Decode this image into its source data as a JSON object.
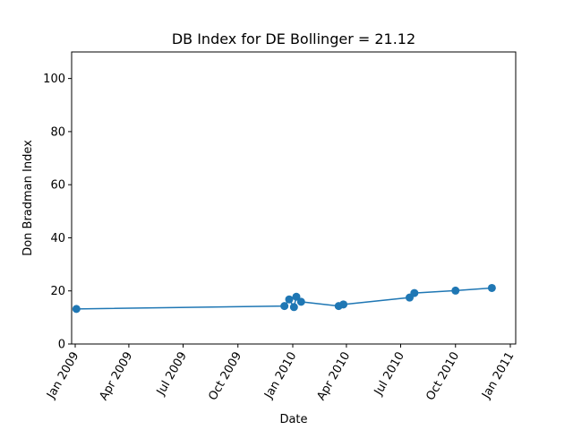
{
  "chart_data": {
    "type": "line",
    "title": "DB Index for DE Bollinger = 21.12",
    "xlabel": "Date",
    "ylabel": "Don Bradman Index",
    "xlim": [
      "2008-12-26",
      "2011-01-10"
    ],
    "ylim": [
      0,
      110
    ],
    "x_ticks": [
      {
        "date": "2009-01-01",
        "label": "Jan 2009"
      },
      {
        "date": "2009-04-01",
        "label": "Apr 2009"
      },
      {
        "date": "2009-07-01",
        "label": "Jul 2009"
      },
      {
        "date": "2009-10-01",
        "label": "Oct 2009"
      },
      {
        "date": "2010-01-01",
        "label": "Jan 2010"
      },
      {
        "date": "2010-04-01",
        "label": "Apr 2010"
      },
      {
        "date": "2010-07-01",
        "label": "Jul 2010"
      },
      {
        "date": "2010-10-01",
        "label": "Oct 2010"
      },
      {
        "date": "2011-01-01",
        "label": "Jan 2011"
      }
    ],
    "y_ticks": [
      0,
      20,
      40,
      60,
      80,
      100
    ],
    "grid": false,
    "color": "#1f77b4",
    "series": [
      {
        "points": [
          {
            "x": "2009-01-03",
            "y": 13.2
          },
          {
            "x": "2009-12-18",
            "y": 14.3
          },
          {
            "x": "2009-12-26",
            "y": 16.8
          },
          {
            "x": "2010-01-03",
            "y": 13.9
          },
          {
            "x": "2010-01-07",
            "y": 17.8
          },
          {
            "x": "2010-01-15",
            "y": 15.9
          },
          {
            "x": "2010-03-19",
            "y": 14.3
          },
          {
            "x": "2010-03-27",
            "y": 14.9
          },
          {
            "x": "2010-07-16",
            "y": 17.5
          },
          {
            "x": "2010-07-24",
            "y": 19.2
          },
          {
            "x": "2010-10-01",
            "y": 20.1
          },
          {
            "x": "2010-12-01",
            "y": 21.1
          }
        ]
      }
    ]
  }
}
